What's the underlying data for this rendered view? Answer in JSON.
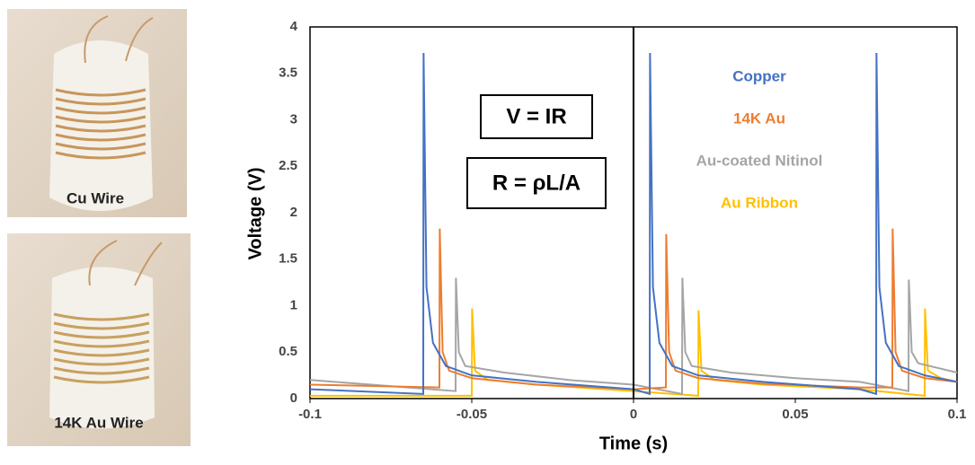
{
  "photos": [
    {
      "caption": "Cu Wire"
    },
    {
      "caption": "14K Au Wire"
    }
  ],
  "chart_data": {
    "type": "line",
    "xlabel": "Time (s)",
    "ylabel": "Voltage (V)",
    "annotations": [
      "V = IR",
      "R = ρL/A"
    ],
    "xlim": [
      -0.1,
      0.1
    ],
    "xticks": [
      -0.1,
      -0.05,
      0,
      0.05,
      0.1
    ],
    "ylim": [
      0,
      4
    ],
    "yticks": [
      0,
      0.5,
      1,
      1.5,
      2,
      2.5,
      3,
      3.5,
      4
    ],
    "grid": false,
    "legend": "upper right",
    "series": [
      {
        "name": "Copper",
        "color": "#4472c4",
        "x": [
          -0.1,
          -0.065,
          -0.0649,
          -0.064,
          -0.062,
          -0.058,
          -0.05,
          -0.03,
          0.0,
          0.005,
          0.0051,
          0.006,
          0.008,
          0.012,
          0.02,
          0.04,
          0.07,
          0.075,
          0.0751,
          0.076,
          0.078,
          0.082,
          0.09,
          0.1
        ],
        "values": [
          0.1,
          0.05,
          3.72,
          1.2,
          0.6,
          0.35,
          0.25,
          0.18,
          0.1,
          0.05,
          3.72,
          1.2,
          0.6,
          0.35,
          0.25,
          0.18,
          0.1,
          0.05,
          3.72,
          1.2,
          0.6,
          0.35,
          0.25,
          0.18
        ]
      },
      {
        "name": "14K Au",
        "color": "#ed7d31",
        "x": [
          -0.1,
          -0.06,
          -0.0599,
          -0.059,
          -0.057,
          -0.05,
          -0.03,
          0.0,
          0.01,
          0.0101,
          0.011,
          0.013,
          0.02,
          0.04,
          0.07,
          0.08,
          0.0801,
          0.081,
          0.083,
          0.09,
          0.1
        ],
        "values": [
          0.15,
          0.12,
          1.83,
          0.5,
          0.3,
          0.22,
          0.15,
          0.1,
          0.12,
          1.77,
          0.5,
          0.3,
          0.22,
          0.16,
          0.12,
          0.12,
          1.83,
          0.5,
          0.3,
          0.22,
          0.18
        ]
      },
      {
        "name": "Au-coated Nitinol",
        "color": "#a5a5a5",
        "x": [
          -0.1,
          -0.055,
          -0.0549,
          -0.054,
          -0.052,
          -0.04,
          -0.02,
          0.0,
          0.015,
          0.0151,
          0.016,
          0.018,
          0.03,
          0.05,
          0.07,
          0.085,
          0.0851,
          0.086,
          0.088,
          0.1
        ],
        "values": [
          0.2,
          0.08,
          1.3,
          0.5,
          0.35,
          0.28,
          0.2,
          0.15,
          0.05,
          1.3,
          0.5,
          0.35,
          0.28,
          0.22,
          0.18,
          0.08,
          1.28,
          0.5,
          0.38,
          0.28
        ]
      },
      {
        "name": "Au Ribbon",
        "color": "#ffc000",
        "x": [
          -0.1,
          -0.05,
          -0.0499,
          -0.049,
          -0.045,
          -0.03,
          0.0,
          0.02,
          0.0201,
          0.021,
          0.025,
          0.04,
          0.07,
          0.09,
          0.0901,
          0.091,
          0.095,
          0.1
        ],
        "values": [
          0.03,
          0.03,
          0.97,
          0.3,
          0.2,
          0.15,
          0.08,
          0.03,
          0.95,
          0.3,
          0.2,
          0.15,
          0.1,
          0.03,
          0.97,
          0.3,
          0.22,
          0.18
        ]
      }
    ]
  }
}
